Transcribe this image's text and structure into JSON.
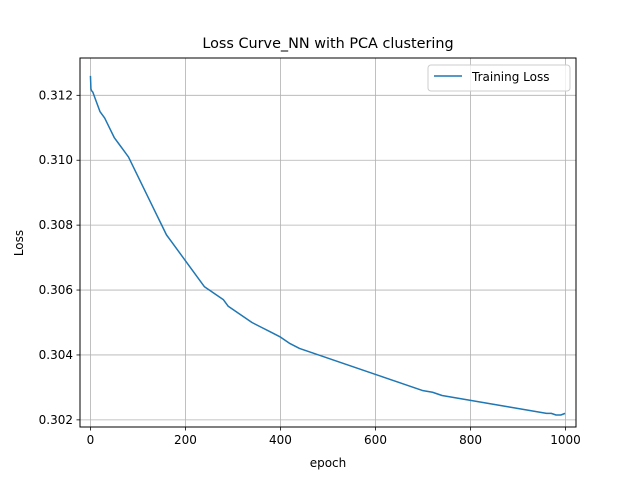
{
  "chart_data": {
    "type": "line",
    "title": "Loss Curve_NN with PCA clustering",
    "xlabel": "epoch",
    "ylabel": "Loss",
    "xlim": [
      -22,
      1022
    ],
    "ylim": [
      0.30178,
      0.31315
    ],
    "xticks": [
      0,
      200,
      400,
      600,
      800,
      1000
    ],
    "yticks": [
      0.302,
      0.304,
      0.306,
      0.308,
      0.31,
      0.312
    ],
    "xtick_labels": [
      "0",
      "200",
      "400",
      "600",
      "800",
      "1000"
    ],
    "ytick_labels": [
      "0.302",
      "0.304",
      "0.306",
      "0.308",
      "0.310",
      "0.312"
    ],
    "grid": true,
    "legend_position": "top-right",
    "series": [
      {
        "name": "Training Loss",
        "color": "#1f77b4",
        "x": [
          0,
          1,
          2,
          5,
          10,
          20,
          30,
          40,
          50,
          60,
          70,
          80,
          90,
          100,
          110,
          120,
          130,
          140,
          150,
          160,
          170,
          180,
          190,
          200,
          210,
          220,
          230,
          240,
          250,
          260,
          270,
          280,
          290,
          300,
          320,
          340,
          360,
          380,
          400,
          420,
          440,
          460,
          480,
          500,
          520,
          540,
          560,
          580,
          600,
          620,
          640,
          660,
          680,
          700,
          720,
          740,
          760,
          780,
          800,
          820,
          840,
          860,
          880,
          900,
          920,
          940,
          960,
          970,
          980,
          990,
          999
        ],
        "y": [
          0.3126,
          0.3122,
          0.31215,
          0.3121,
          0.3119,
          0.3115,
          0.3113,
          0.311,
          0.3107,
          0.3105,
          0.3103,
          0.3101,
          0.3098,
          0.3095,
          0.3092,
          0.3089,
          0.3086,
          0.3083,
          0.308,
          0.3077,
          0.3075,
          0.3073,
          0.3071,
          0.3069,
          0.3067,
          0.3065,
          0.3063,
          0.3061,
          0.306,
          0.3059,
          0.3058,
          0.3057,
          0.3055,
          0.3054,
          0.3052,
          0.305,
          0.30485,
          0.3047,
          0.30455,
          0.30435,
          0.3042,
          0.3041,
          0.304,
          0.3039,
          0.3038,
          0.3037,
          0.3036,
          0.3035,
          0.3034,
          0.3033,
          0.3032,
          0.3031,
          0.303,
          0.3029,
          0.30285,
          0.30275,
          0.3027,
          0.30265,
          0.3026,
          0.30255,
          0.3025,
          0.30245,
          0.3024,
          0.30235,
          0.3023,
          0.30225,
          0.3022,
          0.3022,
          0.30215,
          0.30215,
          0.3022
        ]
      }
    ]
  }
}
